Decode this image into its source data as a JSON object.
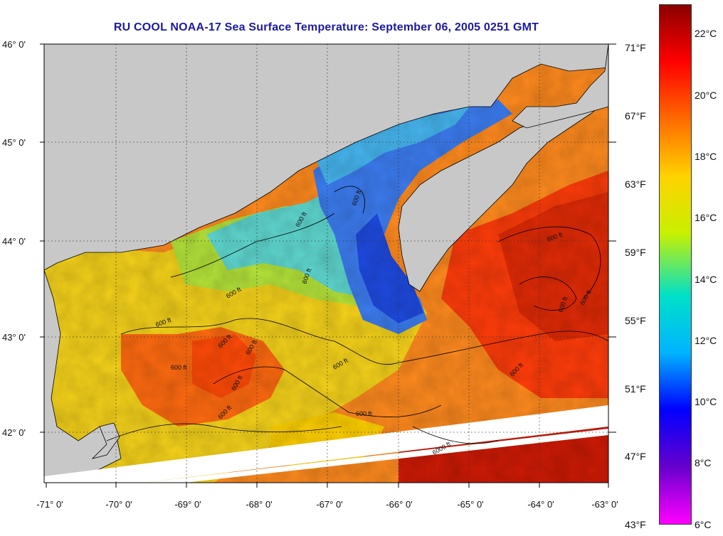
{
  "title": "RU COOL  NOAA-17  Sea Surface Temperature:  September 06, 2005 0251 GMT",
  "map": {
    "lat_labels": [
      "46° 0'",
      "45° 0'",
      "44° 0'",
      "43° 0'",
      "42° 0'"
    ],
    "lon_labels": [
      "-71° 0'",
      "-70° 0'",
      "-69° 0'",
      "-68° 0'",
      "-67° 0'",
      "-66° 0'",
      "-65° 0'",
      "-64° 0'",
      "-63° 0'"
    ],
    "contour_label": "600 ft",
    "deep_contour_label": "6000 ft",
    "land_color": "#c8c8c8",
    "gridlines": "dotted"
  },
  "colorbar": {
    "fahrenheit_labels": [
      "71°F",
      "67°F",
      "63°F",
      "59°F",
      "55°F",
      "51°F",
      "47°F",
      "43°F"
    ],
    "celsius_labels": [
      "22°C",
      "20°C",
      "18°C",
      "16°C",
      "14°C",
      "12°C",
      "10°C",
      "8°C",
      "6°C"
    ],
    "colors": [
      "#8b0000",
      "#ff0000",
      "#ff6a00",
      "#ffd200",
      "#c8f000",
      "#00e0c8",
      "#00b4ff",
      "#0000ff",
      "#6600cc",
      "#ff00ff"
    ]
  }
}
